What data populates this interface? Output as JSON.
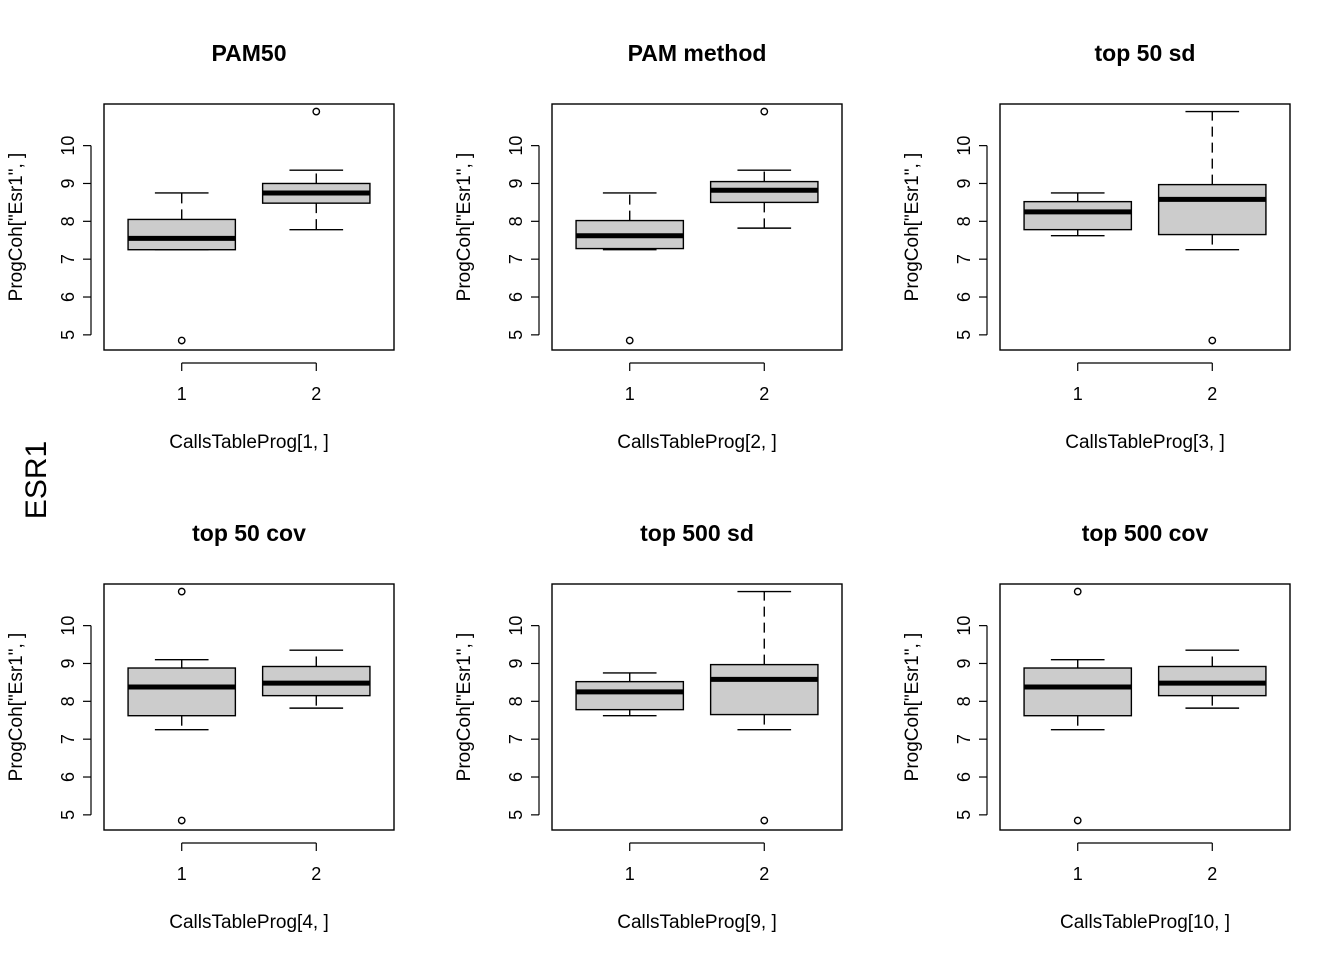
{
  "figure": {
    "outer_label": "ESR1",
    "box_fill": "#cccccc",
    "line_color": "#000000",
    "background": "#ffffff"
  },
  "chart_data": [
    {
      "type": "boxplot",
      "title": "PAM50",
      "xlabel": "CallsTableProg[1, ]",
      "ylabel": "ProgCoh[\"Esr1\", ]",
      "categories": [
        "1",
        "2"
      ],
      "yticks": [
        5,
        6,
        7,
        8,
        9,
        10
      ],
      "ylim": [
        4.6,
        11.1
      ],
      "boxes": [
        {
          "group": "1",
          "whisker_low": 7.25,
          "q1": 7.25,
          "median": 7.55,
          "q3": 8.05,
          "whisker_high": 8.75,
          "outliers": [
            4.85
          ]
        },
        {
          "group": "2",
          "whisker_low": 7.78,
          "q1": 8.48,
          "median": 8.75,
          "q3": 9.0,
          "whisker_high": 9.35,
          "outliers": [
            10.9
          ]
        }
      ]
    },
    {
      "type": "boxplot",
      "title": "PAM method",
      "xlabel": "CallsTableProg[2, ]",
      "ylabel": "ProgCoh[\"Esr1\", ]",
      "categories": [
        "1",
        "2"
      ],
      "yticks": [
        5,
        6,
        7,
        8,
        9,
        10
      ],
      "ylim": [
        4.6,
        11.1
      ],
      "boxes": [
        {
          "group": "1",
          "whisker_low": 7.25,
          "q1": 7.28,
          "median": 7.62,
          "q3": 8.02,
          "whisker_high": 8.75,
          "outliers": [
            4.85
          ]
        },
        {
          "group": "2",
          "whisker_low": 7.82,
          "q1": 8.5,
          "median": 8.82,
          "q3": 9.05,
          "whisker_high": 9.35,
          "outliers": [
            10.9
          ]
        }
      ]
    },
    {
      "type": "boxplot",
      "title": "top 50 sd",
      "xlabel": "CallsTableProg[3, ]",
      "ylabel": "ProgCoh[\"Esr1\", ]",
      "categories": [
        "1",
        "2"
      ],
      "yticks": [
        5,
        6,
        7,
        8,
        9,
        10
      ],
      "ylim": [
        4.6,
        11.1
      ],
      "boxes": [
        {
          "group": "1",
          "whisker_low": 7.62,
          "q1": 7.78,
          "median": 8.25,
          "q3": 8.52,
          "whisker_high": 8.75,
          "outliers": []
        },
        {
          "group": "2",
          "whisker_low": 7.25,
          "q1": 7.65,
          "median": 8.58,
          "q3": 8.97,
          "whisker_high": 10.9,
          "outliers": [
            4.85
          ]
        }
      ]
    },
    {
      "type": "boxplot",
      "title": "top 50 cov",
      "xlabel": "CallsTableProg[4, ]",
      "ylabel": "ProgCoh[\"Esr1\", ]",
      "categories": [
        "1",
        "2"
      ],
      "yticks": [
        5,
        6,
        7,
        8,
        9,
        10
      ],
      "ylim": [
        4.6,
        11.1
      ],
      "boxes": [
        {
          "group": "1",
          "whisker_low": 7.25,
          "q1": 7.62,
          "median": 8.38,
          "q3": 8.88,
          "whisker_high": 9.1,
          "outliers": [
            4.85,
            10.9
          ]
        },
        {
          "group": "2",
          "whisker_low": 7.82,
          "q1": 8.15,
          "median": 8.48,
          "q3": 8.92,
          "whisker_high": 9.35,
          "outliers": []
        }
      ]
    },
    {
      "type": "boxplot",
      "title": "top 500 sd",
      "xlabel": "CallsTableProg[9, ]",
      "ylabel": "ProgCoh[\"Esr1\", ]",
      "categories": [
        "1",
        "2"
      ],
      "yticks": [
        5,
        6,
        7,
        8,
        9,
        10
      ],
      "ylim": [
        4.6,
        11.1
      ],
      "boxes": [
        {
          "group": "1",
          "whisker_low": 7.62,
          "q1": 7.78,
          "median": 8.25,
          "q3": 8.52,
          "whisker_high": 8.75,
          "outliers": []
        },
        {
          "group": "2",
          "whisker_low": 7.25,
          "q1": 7.65,
          "median": 8.58,
          "q3": 8.97,
          "whisker_high": 10.9,
          "outliers": [
            4.85
          ]
        }
      ]
    },
    {
      "type": "boxplot",
      "title": "top 500 cov",
      "xlabel": "CallsTableProg[10, ]",
      "ylabel": "ProgCoh[\"Esr1\", ]",
      "categories": [
        "1",
        "2"
      ],
      "yticks": [
        5,
        6,
        7,
        8,
        9,
        10
      ],
      "ylim": [
        4.6,
        11.1
      ],
      "boxes": [
        {
          "group": "1",
          "whisker_low": 7.25,
          "q1": 7.62,
          "median": 8.38,
          "q3": 8.88,
          "whisker_high": 9.1,
          "outliers": [
            4.85,
            10.9
          ]
        },
        {
          "group": "2",
          "whisker_low": 7.82,
          "q1": 8.15,
          "median": 8.48,
          "q3": 8.92,
          "whisker_high": 9.35,
          "outliers": []
        }
      ]
    }
  ]
}
